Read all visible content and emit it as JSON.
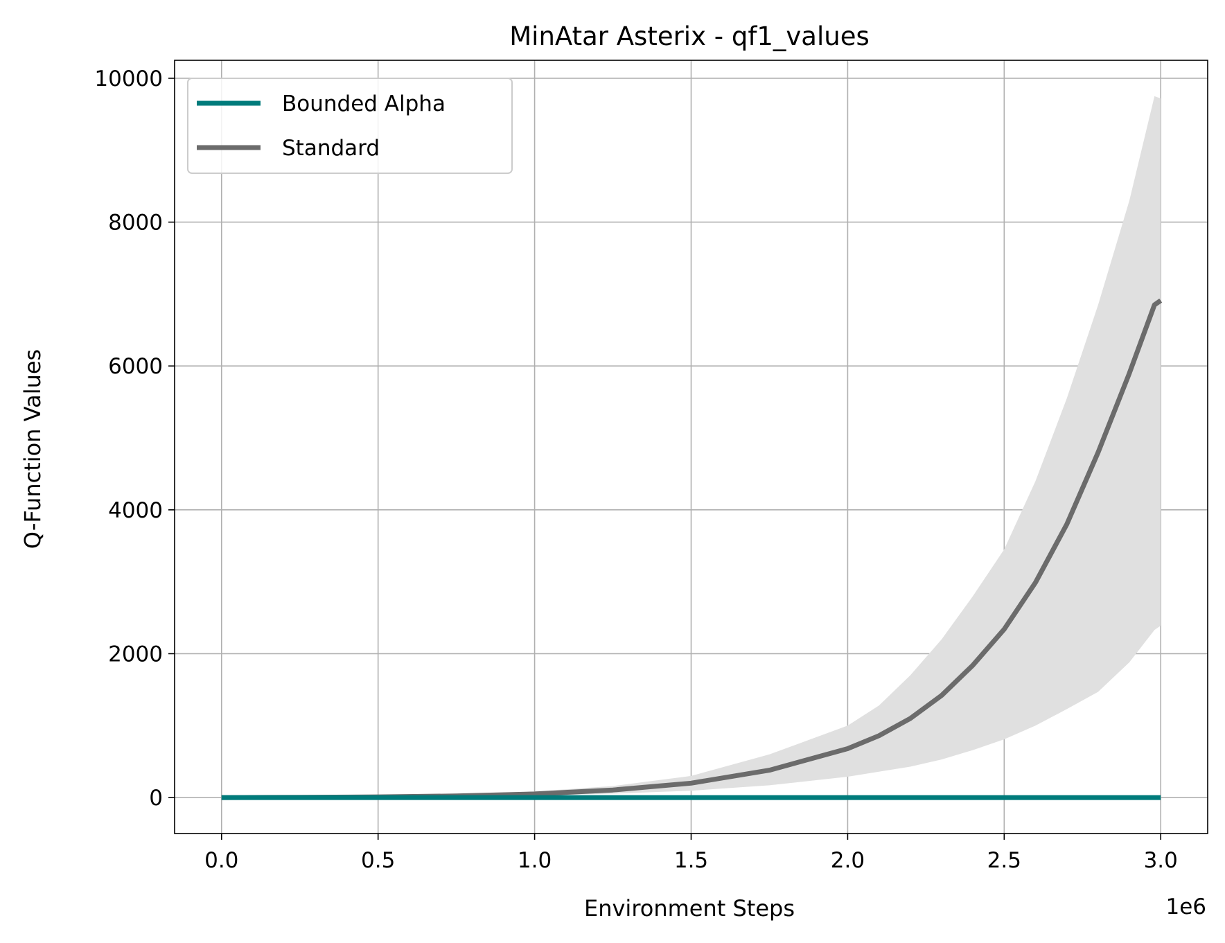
{
  "chart_data": {
    "type": "line",
    "title": "MinAtar Asterix - qf1_values",
    "xlabel": "Environment Steps",
    "ylabel": "Q-Function Values",
    "x_offset_label": "1e6",
    "xlim": [
      -0.15,
      3.15
    ],
    "ylim": [
      -500,
      10250
    ],
    "x_ticks": [
      0.0,
      0.5,
      1.0,
      1.5,
      2.0,
      2.5,
      3.0
    ],
    "x_tick_labels": [
      "0.0",
      "0.5",
      "1.0",
      "1.5",
      "2.0",
      "2.5",
      "3.0"
    ],
    "y_ticks": [
      0,
      2000,
      4000,
      6000,
      8000,
      10000
    ],
    "y_tick_labels": [
      "0",
      "2000",
      "4000",
      "6000",
      "8000",
      "10000"
    ],
    "grid": true,
    "legend_position": "top-left",
    "x": [
      0.0,
      0.25,
      0.5,
      0.75,
      1.0,
      1.25,
      1.5,
      1.75,
      2.0,
      2.1,
      2.2,
      2.3,
      2.4,
      2.5,
      2.6,
      2.7,
      2.8,
      2.9,
      2.98,
      3.0
    ],
    "series": [
      {
        "name": "Bounded Alpha",
        "color": "#007b7b",
        "values": [
          0,
          0,
          0,
          0,
          0,
          0,
          0,
          0,
          0,
          0,
          0,
          0,
          0,
          0,
          0,
          0,
          0,
          0,
          0,
          0
        ]
      },
      {
        "name": "Standard",
        "color": "#6b6b6b",
        "band_color": "#e0e0e0",
        "values": [
          0,
          3,
          10,
          22,
          50,
          105,
          200,
          380,
          680,
          860,
          1100,
          1420,
          1840,
          2340,
          2990,
          3800,
          4800,
          5900,
          6850,
          6910
        ],
        "band_lower": [
          0,
          2,
          5,
          12,
          25,
          55,
          95,
          170,
          290,
          360,
          430,
          530,
          660,
          810,
          1000,
          1230,
          1470,
          1880,
          2330,
          2390
        ],
        "band_upper": [
          0,
          4,
          16,
          35,
          85,
          160,
          300,
          600,
          1000,
          1280,
          1700,
          2200,
          2800,
          3450,
          4400,
          5550,
          6850,
          8300,
          9750,
          9720
        ]
      }
    ]
  }
}
